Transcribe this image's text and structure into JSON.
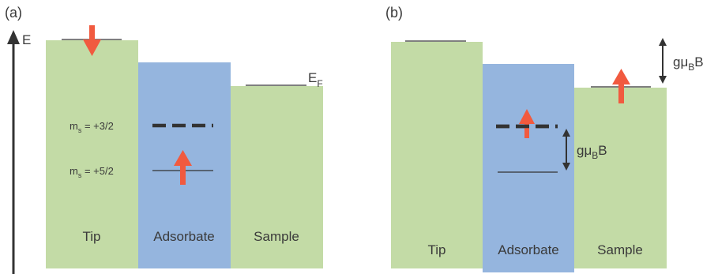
{
  "panel_a": {
    "label": "(a)",
    "energy_axis_label": "E",
    "fermi_label": "E",
    "fermi_sub": "F",
    "blocks": {
      "tip": "Tip",
      "adsorbate": "Adsorbate",
      "sample": "Sample"
    },
    "states": {
      "upper": {
        "m": "m",
        "s": "s",
        "value": " = +3/2"
      },
      "lower": {
        "m": "m",
        "s": "s",
        "value": " = +5/2"
      }
    }
  },
  "panel_b": {
    "label": "(b)",
    "blocks": {
      "tip": "Tip",
      "adsorbate": "Adsorbate",
      "sample": "Sample"
    },
    "zeeman_sample": {
      "g": "gμ",
      "sub": "B",
      "b": "B"
    },
    "zeeman_adsorbate": {
      "g": "gμ",
      "sub": "B",
      "b": "B"
    }
  },
  "colors": {
    "green": "#c3dba6",
    "blue": "#95b5de",
    "arrow_red": "#f15a3f",
    "line": "#333333"
  }
}
